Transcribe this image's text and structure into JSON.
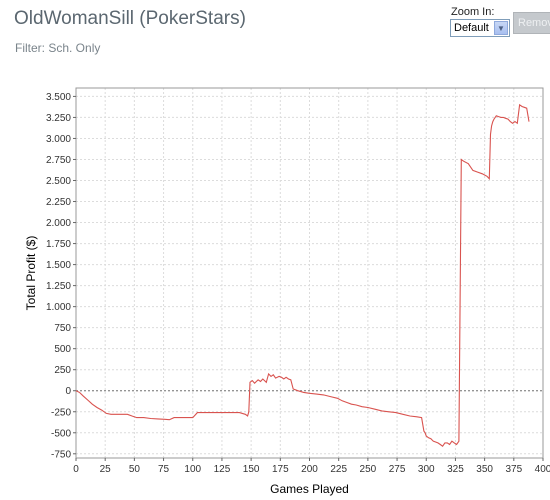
{
  "header": {
    "title": "OldWomanSill (PokerStars)",
    "filter": "Filter: Sch. Only"
  },
  "zoom": {
    "label": "Zoom In:",
    "selected": "Default"
  },
  "remove_button": {
    "label": "Remove"
  },
  "chart_data": {
    "type": "line",
    "xlabel": "Games Played",
    "ylabel": "Total Profit ($)",
    "xlim": [
      0,
      400
    ],
    "ylim": [
      -800,
      3600
    ],
    "xticks": [
      0,
      25,
      50,
      75,
      100,
      125,
      150,
      175,
      200,
      225,
      250,
      275,
      300,
      325,
      350,
      375,
      400
    ],
    "yticks": [
      -750,
      -500,
      -250,
      0,
      250,
      500,
      750,
      1000,
      1250,
      1500,
      1750,
      2000,
      2250,
      2500,
      2750,
      3000,
      3250,
      3500
    ],
    "ytick_labels": [
      "-750",
      "-500",
      "-250",
      "0",
      "250",
      "500",
      "750",
      "1.000",
      "1.250",
      "1.500",
      "1.750",
      "2.000",
      "2.250",
      "2.500",
      "2.750",
      "3.000",
      "3.250",
      "3.500"
    ],
    "grid": true,
    "zero_line": true,
    "line_color": "#d9534f",
    "series": [
      {
        "x": [
          0,
          3,
          6,
          10,
          14,
          18,
          22,
          26,
          30,
          36,
          44,
          48,
          52,
          58,
          64,
          70,
          76,
          80,
          84,
          90,
          96,
          100,
          104,
          110,
          118,
          126,
          134,
          140,
          145,
          147,
          148,
          149,
          151,
          153,
          156,
          158,
          160,
          163,
          165,
          167,
          169,
          171,
          174,
          176,
          178,
          180,
          182,
          184,
          186,
          190,
          195,
          200,
          206,
          212,
          218,
          224,
          228,
          232,
          236,
          240,
          245,
          250,
          256,
          262,
          268,
          274,
          280,
          286,
          292,
          296,
          298,
          299,
          300,
          302,
          304,
          306,
          308,
          310,
          312,
          314,
          316,
          318,
          320,
          322,
          324,
          326,
          328,
          330,
          331,
          332,
          336,
          340,
          344,
          348,
          352,
          354,
          355,
          356,
          357,
          358,
          360,
          362,
          364,
          366,
          368,
          370,
          372,
          374,
          376,
          378,
          380,
          382,
          384,
          386,
          388
        ],
        "values": [
          0,
          -20,
          -60,
          -110,
          -160,
          -200,
          -230,
          -270,
          -280,
          -280,
          -280,
          -300,
          -320,
          -320,
          -330,
          -335,
          -340,
          -345,
          -320,
          -320,
          -320,
          -320,
          -260,
          -260,
          -260,
          -260,
          -260,
          -260,
          -280,
          -300,
          -250,
          100,
          120,
          90,
          130,
          110,
          140,
          100,
          200,
          170,
          190,
          150,
          170,
          160,
          140,
          160,
          140,
          130,
          20,
          0,
          -20,
          -30,
          -40,
          -50,
          -70,
          -90,
          -120,
          -140,
          -160,
          -170,
          -190,
          -200,
          -220,
          -240,
          -250,
          -260,
          -280,
          -300,
          -310,
          -320,
          -480,
          -500,
          -540,
          -560,
          -570,
          -600,
          -610,
          -620,
          -640,
          -660,
          -620,
          -620,
          -640,
          -600,
          -620,
          -640,
          -600,
          2750,
          2740,
          2730,
          2700,
          2620,
          2600,
          2580,
          2550,
          2520,
          3050,
          3150,
          3200,
          3230,
          3270,
          3260,
          3250,
          3250,
          3240,
          3230,
          3200,
          3180,
          3200,
          3180,
          3400,
          3380,
          3370,
          3360,
          3200
        ]
      }
    ]
  }
}
